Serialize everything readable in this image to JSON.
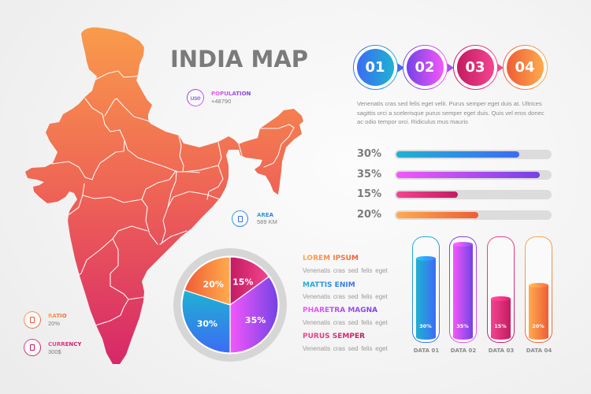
{
  "palette": {
    "blue": {
      "light": "#1fb2d2",
      "dark": "#3c6cf4"
    },
    "purple": {
      "light": "#f457fa",
      "dark": "#7343e6"
    },
    "pink": {
      "light": "#f3458f",
      "dark": "#c31b62"
    },
    "orange": {
      "light": "#ffab4d",
      "dark": "#ee5d36"
    },
    "title_gray": "#7b7b7b",
    "map_top": "#f99b4b",
    "map_mid": "#ee6256",
    "map_bottom": "#d6276a",
    "track_gray": "#dcdcdc",
    "ring_gray": "#d6d6d6"
  },
  "header": {
    "title": "INDIA MAP"
  },
  "steps": [
    {
      "label": "01",
      "color": "blue"
    },
    {
      "label": "02",
      "color": "purple"
    },
    {
      "label": "03",
      "color": "pink"
    },
    {
      "label": "04",
      "color": "orange"
    }
  ],
  "description": {
    "lines": [
      "Venenatis cras sed felis eget velit. Purus semper eget duis at. Ultrices",
      "sagittis orci a scelerisque purus semper eget duis. Quis vel eros donec",
      "ac odio tempor orci. Ridiculus mus mauris"
    ]
  },
  "map_labels": {
    "population": {
      "title": "POPULATION",
      "value": "+48790",
      "icon": "user-icon",
      "icon_glyph": "use"
    },
    "area": {
      "title": "AREA",
      "value": "589 KM",
      "icon": "placeholder-glyph-icon"
    },
    "ratio": {
      "title": "RATIO",
      "value": "20%",
      "icon": "placeholder-glyph-icon"
    },
    "currency": {
      "title": "CURRENCY",
      "value": "300$",
      "icon": "placeholder-glyph-icon"
    }
  },
  "legend": [
    {
      "title": "LOREM IPSUM",
      "desc": "Venenatis cras sed felis eget",
      "color": "orange"
    },
    {
      "title": "MATTIS ENIM",
      "desc": "Venenatis cras sed felis eget",
      "color": "blue"
    },
    {
      "title": "PHARETRA MAGNA",
      "desc": "Venenatis cras sed felis eget",
      "color": "purple"
    },
    {
      "title": "PURUS SEMPER",
      "desc": "Venenatis cras sed felis eget",
      "color": "pink"
    }
  ],
  "chart_data": [
    {
      "type": "bar",
      "orientation": "horizontal",
      "title": "",
      "categories": [
        "01",
        "02",
        "03",
        "04"
      ],
      "values": [
        30,
        35,
        15,
        20
      ],
      "labels": [
        "30%",
        "35%",
        "15%",
        "20%"
      ],
      "colors": [
        "blue",
        "purple",
        "pink",
        "orange"
      ],
      "grid": false,
      "legend": "none"
    },
    {
      "type": "pie",
      "title": "",
      "start": "12 o'clock, clockwise",
      "categories": [
        "PURUS SEMPER",
        "PHARETRA MAGNA",
        "MATTIS ENIM",
        "LOREM IPSUM"
      ],
      "values": [
        15,
        35,
        30,
        20
      ],
      "labels": [
        "15%",
        "35%",
        "30%",
        "20%"
      ],
      "colors": [
        "pink",
        "purple",
        "blue",
        "orange"
      ],
      "legend": "right"
    },
    {
      "type": "bar",
      "orientation": "vertical",
      "title": "",
      "categories": [
        "DATA 01",
        "DATA 02",
        "DATA 03",
        "DATA 04"
      ],
      "values": [
        30,
        35,
        15,
        20
      ],
      "labels": [
        "30%",
        "35%",
        "15%",
        "20%"
      ],
      "colors": [
        "blue",
        "purple",
        "pink",
        "orange"
      ],
      "grid": false,
      "legend": "none"
    }
  ]
}
